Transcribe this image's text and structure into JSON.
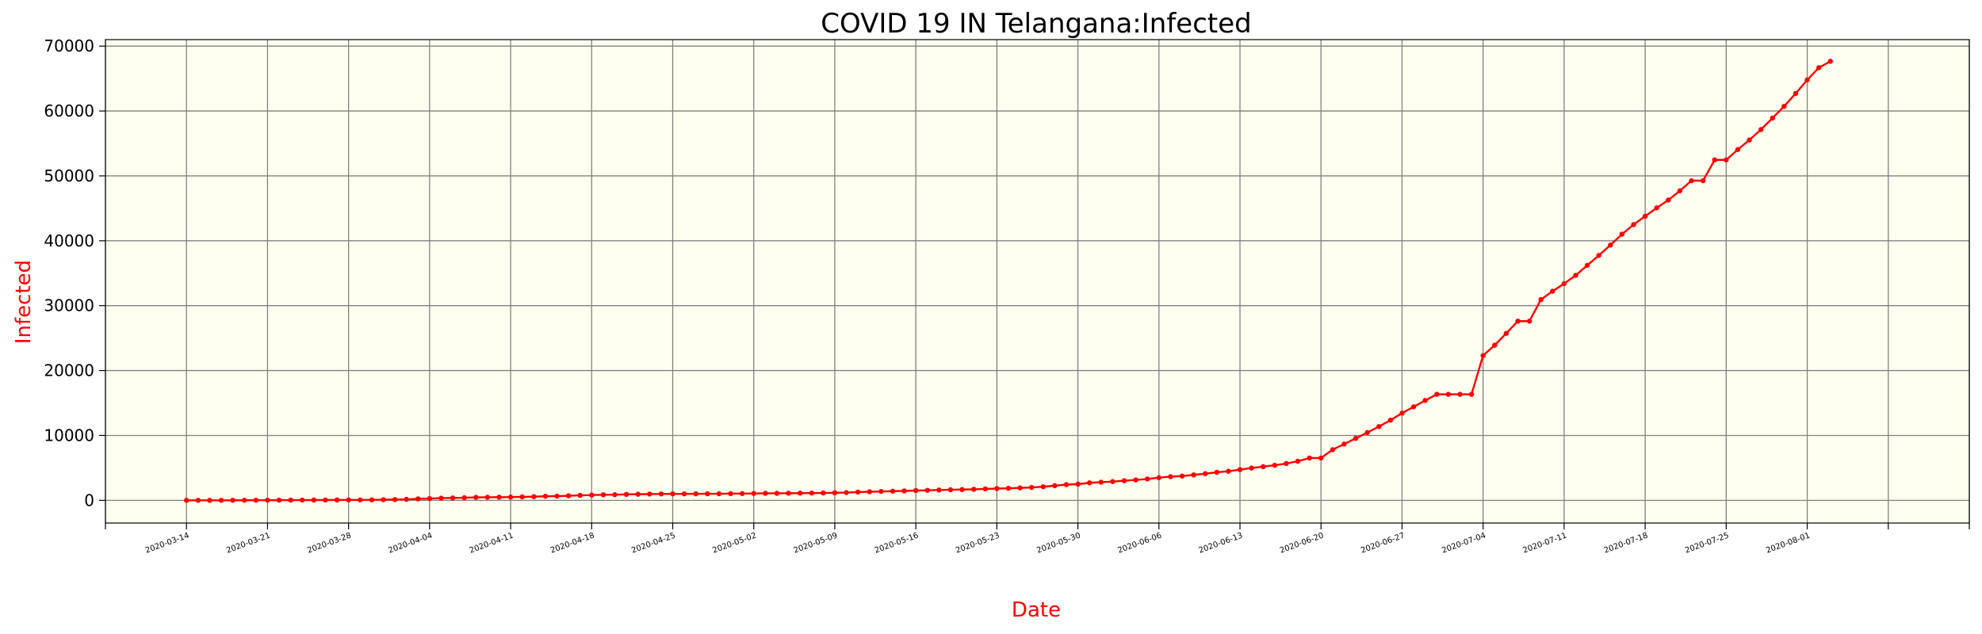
{
  "chart_data": {
    "type": "line",
    "title": "COVID 19 IN Telangana:Infected",
    "xlabel": "Date",
    "ylabel": "Infected",
    "ylim": [
      -3500,
      71000
    ],
    "yticks": [
      0,
      10000,
      20000,
      30000,
      40000,
      50000,
      60000,
      70000
    ],
    "ytick_labels": [
      "0",
      "10000",
      "20000",
      "30000",
      "40000",
      "50000",
      "60000",
      "70000"
    ],
    "xticks": [
      "2020-03-14",
      "2020-03-21",
      "2020-03-28",
      "2020-04-04",
      "2020-04-11",
      "2020-04-18",
      "2020-04-25",
      "2020-05-02",
      "2020-05-09",
      "2020-05-16",
      "2020-05-23",
      "2020-05-30",
      "2020-06-06",
      "2020-06-13",
      "2020-06-20",
      "2020-06-27",
      "2020-07-04",
      "2020-07-11",
      "2020-07-18",
      "2020-07-25",
      "2020-08-01"
    ],
    "xlim": [
      "2020-03-07",
      "2020-08-15"
    ],
    "grid": true,
    "legend": "none",
    "colors": {
      "line": "#ff0000",
      "plot_bg": "#fffff0",
      "grid": "#808080",
      "axis_label": "#ff0000"
    },
    "series": [
      {
        "x": [
          "2020-03-14",
          "2020-03-15",
          "2020-03-16",
          "2020-03-17",
          "2020-03-18",
          "2020-03-19",
          "2020-03-20",
          "2020-03-21",
          "2020-03-22",
          "2020-03-23",
          "2020-03-24",
          "2020-03-25",
          "2020-03-26",
          "2020-03-27",
          "2020-03-28",
          "2020-03-29",
          "2020-03-30",
          "2020-03-31",
          "2020-04-01",
          "2020-04-02",
          "2020-04-03",
          "2020-04-04",
          "2020-04-05",
          "2020-04-06",
          "2020-04-07",
          "2020-04-08",
          "2020-04-09",
          "2020-04-10",
          "2020-04-11",
          "2020-04-12",
          "2020-04-13",
          "2020-04-14",
          "2020-04-15",
          "2020-04-16",
          "2020-04-17",
          "2020-04-18",
          "2020-04-19",
          "2020-04-20",
          "2020-04-21",
          "2020-04-22",
          "2020-04-23",
          "2020-04-24",
          "2020-04-25",
          "2020-04-26",
          "2020-04-27",
          "2020-04-28",
          "2020-04-29",
          "2020-04-30",
          "2020-05-01",
          "2020-05-02",
          "2020-05-03",
          "2020-05-04",
          "2020-05-05",
          "2020-05-06",
          "2020-05-07",
          "2020-05-08",
          "2020-05-09",
          "2020-05-10",
          "2020-05-11",
          "2020-05-12",
          "2020-05-13",
          "2020-05-14",
          "2020-05-15",
          "2020-05-16",
          "2020-05-17",
          "2020-05-18",
          "2020-05-19",
          "2020-05-20",
          "2020-05-21",
          "2020-05-22",
          "2020-05-23",
          "2020-05-24",
          "2020-05-25",
          "2020-05-26",
          "2020-05-27",
          "2020-05-28",
          "2020-05-29",
          "2020-05-30",
          "2020-05-31",
          "2020-06-01",
          "2020-06-02",
          "2020-06-03",
          "2020-06-04",
          "2020-06-05",
          "2020-06-06",
          "2020-06-07",
          "2020-06-08",
          "2020-06-09",
          "2020-06-10",
          "2020-06-11",
          "2020-06-12",
          "2020-06-13",
          "2020-06-14",
          "2020-06-15",
          "2020-06-16",
          "2020-06-17",
          "2020-06-18",
          "2020-06-19",
          "2020-06-20",
          "2020-06-21",
          "2020-06-22",
          "2020-06-23",
          "2020-06-24",
          "2020-06-25",
          "2020-06-26",
          "2020-06-27",
          "2020-06-28",
          "2020-06-29",
          "2020-06-30",
          "2020-07-01",
          "2020-07-02",
          "2020-07-03",
          "2020-07-04",
          "2020-07-05",
          "2020-07-06",
          "2020-07-07",
          "2020-07-08",
          "2020-07-09",
          "2020-07-10",
          "2020-07-11",
          "2020-07-12",
          "2020-07-13",
          "2020-07-14",
          "2020-07-15",
          "2020-07-16",
          "2020-07-17",
          "2020-07-18",
          "2020-07-19",
          "2020-07-20",
          "2020-07-21",
          "2020-07-22",
          "2020-07-23",
          "2020-07-24",
          "2020-07-25",
          "2020-07-26",
          "2020-07-27",
          "2020-07-28",
          "2020-07-29",
          "2020-07-30",
          "2020-07-31",
          "2020-08-01",
          "2020-08-02",
          "2020-08-03"
        ],
        "y": [
          1,
          3,
          4,
          5,
          8,
          13,
          19,
          21,
          27,
          33,
          36,
          41,
          44,
          58,
          67,
          70,
          77,
          97,
          127,
          154,
          229,
          272,
          334,
          364,
          404,
          453,
          473,
          487,
          503,
          531,
          562,
          624,
          650,
          700,
          766,
          809,
          858,
          872,
          919,
          943,
          970,
          984,
          1001,
          1002,
          1004,
          1009,
          1016,
          1038,
          1044,
          1061,
          1082,
          1085,
          1096,
          1107,
          1122,
          1132,
          1163,
          1196,
          1275,
          1326,
          1367,
          1414,
          1454,
          1509,
          1551,
          1592,
          1634,
          1661,
          1699,
          1761,
          1813,
          1854,
          1920,
          1991,
          2098,
          2256,
          2425,
          2499,
          2698,
          2792,
          2891,
          3020,
          3147,
          3290,
          3496,
          3650,
          3742,
          3920,
          4111,
          4320,
          4484,
          4737,
          4974,
          5193,
          5406,
          5675,
          6027,
          6526,
          6526,
          7802,
          8674,
          9553,
          10444,
          11364,
          12349,
          13436,
          14419,
          15394,
          16339,
          16339,
          16339,
          16339,
          22312,
          23902,
          25733,
          27612,
          27612,
          30946,
          32224,
          33402,
          34671,
          36221,
          37745,
          39342,
          41018,
          42496,
          43780,
          45076,
          46274,
          47705,
          49259,
          49259,
          52466,
          52466,
          54059,
          55532,
          57142,
          58906,
          60717,
          62703,
          64786,
          66677,
          67660
        ]
      }
    ]
  }
}
